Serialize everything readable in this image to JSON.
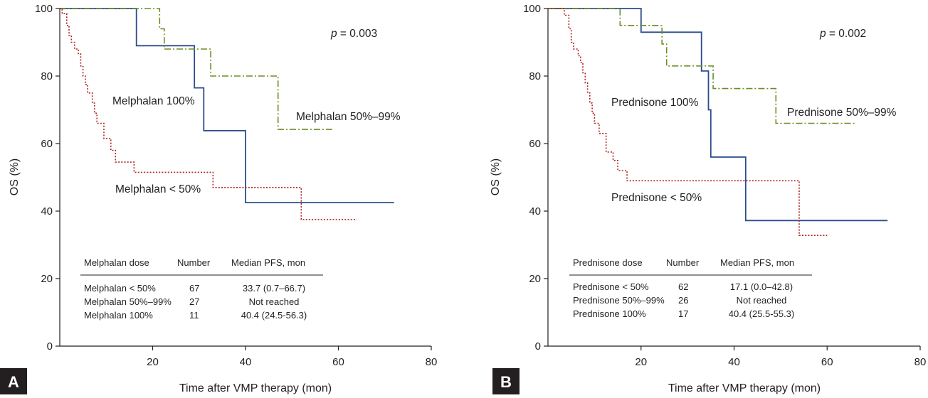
{
  "colors": {
    "solid_100": "#2b4c8c",
    "dashdot_50_99": "#6b8e23",
    "dotted_lt50": "#b22222",
    "axis": "#231f20"
  },
  "chart_data": [
    {
      "type": "line",
      "subtype": "kaplan-meier step",
      "panel": "A",
      "xlabel": "Time after VMP therapy (mon)",
      "ylabel": "OS (%)",
      "xlim": [
        0,
        80
      ],
      "ylim": [
        0,
        100
      ],
      "xticks": [
        20,
        40,
        60,
        80
      ],
      "yticks": [
        0,
        20,
        40,
        60,
        80,
        100
      ],
      "p_value": "p = 0.003",
      "series": [
        {
          "name": "Melphalan 100%",
          "style": "solid",
          "label_text": "Melphalan 100%",
          "points": [
            [
              0,
              100
            ],
            [
              16.5,
              100
            ],
            [
              16.5,
              89
            ],
            [
              29,
              89
            ],
            [
              29,
              76.5
            ],
            [
              31,
              76.5
            ],
            [
              31,
              63.8
            ],
            [
              40,
              63.8
            ],
            [
              40,
              42.5
            ],
            [
              72,
              42.5
            ]
          ]
        },
        {
          "name": "Melphalan 50%–99%",
          "style": "dashdot",
          "label_text": "Melphalan 50%–99%",
          "points": [
            [
              0,
              100
            ],
            [
              21.5,
              100
            ],
            [
              21.5,
              94
            ],
            [
              22.5,
              94
            ],
            [
              22.5,
              88
            ],
            [
              32.5,
              88
            ],
            [
              32.5,
              80
            ],
            [
              47,
              80
            ],
            [
              47,
              64.2
            ],
            [
              59,
              64.2
            ]
          ]
        },
        {
          "name": "Melphalan < 50%",
          "style": "dotted",
          "label_text": "Melphalan < 50%",
          "points": [
            [
              0,
              100
            ],
            [
              0.5,
              100
            ],
            [
              0.5,
              98.5
            ],
            [
              1.5,
              98.5
            ],
            [
              1.5,
              95
            ],
            [
              2,
              95
            ],
            [
              2,
              92
            ],
            [
              2.5,
              92
            ],
            [
              2.5,
              90
            ],
            [
              3.2,
              90
            ],
            [
              3.2,
              88
            ],
            [
              4,
              88
            ],
            [
              4,
              86.5
            ],
            [
              4.5,
              86.5
            ],
            [
              4.5,
              83
            ],
            [
              5,
              83
            ],
            [
              5,
              80
            ],
            [
              5.5,
              80
            ],
            [
              5.5,
              77.5
            ],
            [
              6,
              77.5
            ],
            [
              6,
              75
            ],
            [
              7,
              75
            ],
            [
              7,
              72
            ],
            [
              7.5,
              72
            ],
            [
              7.5,
              69
            ],
            [
              8,
              69
            ],
            [
              8,
              66
            ],
            [
              9.5,
              66
            ],
            [
              9.5,
              61.5
            ],
            [
              11,
              61.5
            ],
            [
              11,
              58
            ],
            [
              12,
              58
            ],
            [
              12,
              54.5
            ],
            [
              16,
              54.5
            ],
            [
              16,
              51.5
            ],
            [
              33,
              51.5
            ],
            [
              33,
              47
            ],
            [
              52,
              47
            ],
            [
              52,
              37.5
            ],
            [
              64,
              37.5
            ]
          ]
        }
      ],
      "table": {
        "headers": [
          "Melphalan dose",
          "Number",
          "Median PFS, mon"
        ],
        "rows": [
          [
            "Melphalan < 50%",
            "67",
            "33.7 (0.7–66.7)"
          ],
          [
            "Melphalan 50%–99%",
            "27",
            "Not reached"
          ],
          [
            "Melphalan 100%",
            "11",
            "40.4 (24.5-56.3)"
          ]
        ]
      }
    },
    {
      "type": "line",
      "subtype": "kaplan-meier step",
      "panel": "B",
      "xlabel": "Time after VMP therapy (mon)",
      "ylabel": "OS (%)",
      "xlim": [
        0,
        80
      ],
      "ylim": [
        0,
        100
      ],
      "xticks": [
        20,
        40,
        60,
        80
      ],
      "yticks": [
        0,
        20,
        40,
        60,
        80,
        100
      ],
      "p_value": "p = 0.002",
      "series": [
        {
          "name": "Prednisone 100%",
          "style": "solid",
          "label_text": "Prednisone 100%",
          "points": [
            [
              0,
              100
            ],
            [
              20,
              100
            ],
            [
              20,
              93
            ],
            [
              33,
              93
            ],
            [
              33,
              81.5
            ],
            [
              34.5,
              81.5
            ],
            [
              34.5,
              70
            ],
            [
              35,
              70
            ],
            [
              35,
              56
            ],
            [
              42.5,
              56
            ],
            [
              42.5,
              37.2
            ],
            [
              73,
              37.2
            ]
          ]
        },
        {
          "name": "Prednisone 50%–99%",
          "style": "dashdot",
          "label_text": "Prednisone 50%–99%",
          "points": [
            [
              0,
              100
            ],
            [
              15.5,
              100
            ],
            [
              15.5,
              95
            ],
            [
              24.5,
              95
            ],
            [
              24.5,
              89.5
            ],
            [
              25.5,
              89.5
            ],
            [
              25.5,
              83
            ],
            [
              35.5,
              83
            ],
            [
              35.5,
              76.3
            ],
            [
              49,
              76.3
            ],
            [
              49,
              66
            ],
            [
              66,
              66
            ]
          ]
        },
        {
          "name": "Prednisone < 50%",
          "style": "dotted",
          "label_text": "Prednisone < 50%",
          "points": [
            [
              0,
              100
            ],
            [
              3.5,
              100
            ],
            [
              3.5,
              98
            ],
            [
              4.5,
              98
            ],
            [
              4.5,
              94
            ],
            [
              5,
              94
            ],
            [
              5,
              90
            ],
            [
              5.5,
              90
            ],
            [
              5.5,
              88
            ],
            [
              6.5,
              88
            ],
            [
              6.5,
              86
            ],
            [
              7,
              86
            ],
            [
              7,
              84
            ],
            [
              7.5,
              84
            ],
            [
              7.5,
              81
            ],
            [
              8,
              81
            ],
            [
              8,
              78
            ],
            [
              8.5,
              78
            ],
            [
              8.5,
              75
            ],
            [
              9,
              75
            ],
            [
              9,
              72
            ],
            [
              9.5,
              72
            ],
            [
              9.5,
              69
            ],
            [
              10,
              69
            ],
            [
              10,
              66
            ],
            [
              11,
              66
            ],
            [
              11,
              63
            ],
            [
              12.5,
              63
            ],
            [
              12.5,
              57.5
            ],
            [
              14,
              57.5
            ],
            [
              14,
              55
            ],
            [
              15,
              55
            ],
            [
              15,
              52
            ],
            [
              17,
              52
            ],
            [
              17,
              49
            ],
            [
              54,
              49
            ],
            [
              54,
              32.8
            ],
            [
              60,
              32.8
            ]
          ]
        }
      ],
      "table": {
        "headers": [
          "Prednisone dose",
          "Number",
          "Median PFS, mon"
        ],
        "rows": [
          [
            "Prednisone < 50%",
            "62",
            "17.1 (0.0–42.8)"
          ],
          [
            "Prednisone 50%–99%",
            "26",
            "Not reached"
          ],
          [
            "Prednisone 100%",
            "17",
            "40.4 (25.5-55.3)"
          ]
        ]
      }
    }
  ]
}
